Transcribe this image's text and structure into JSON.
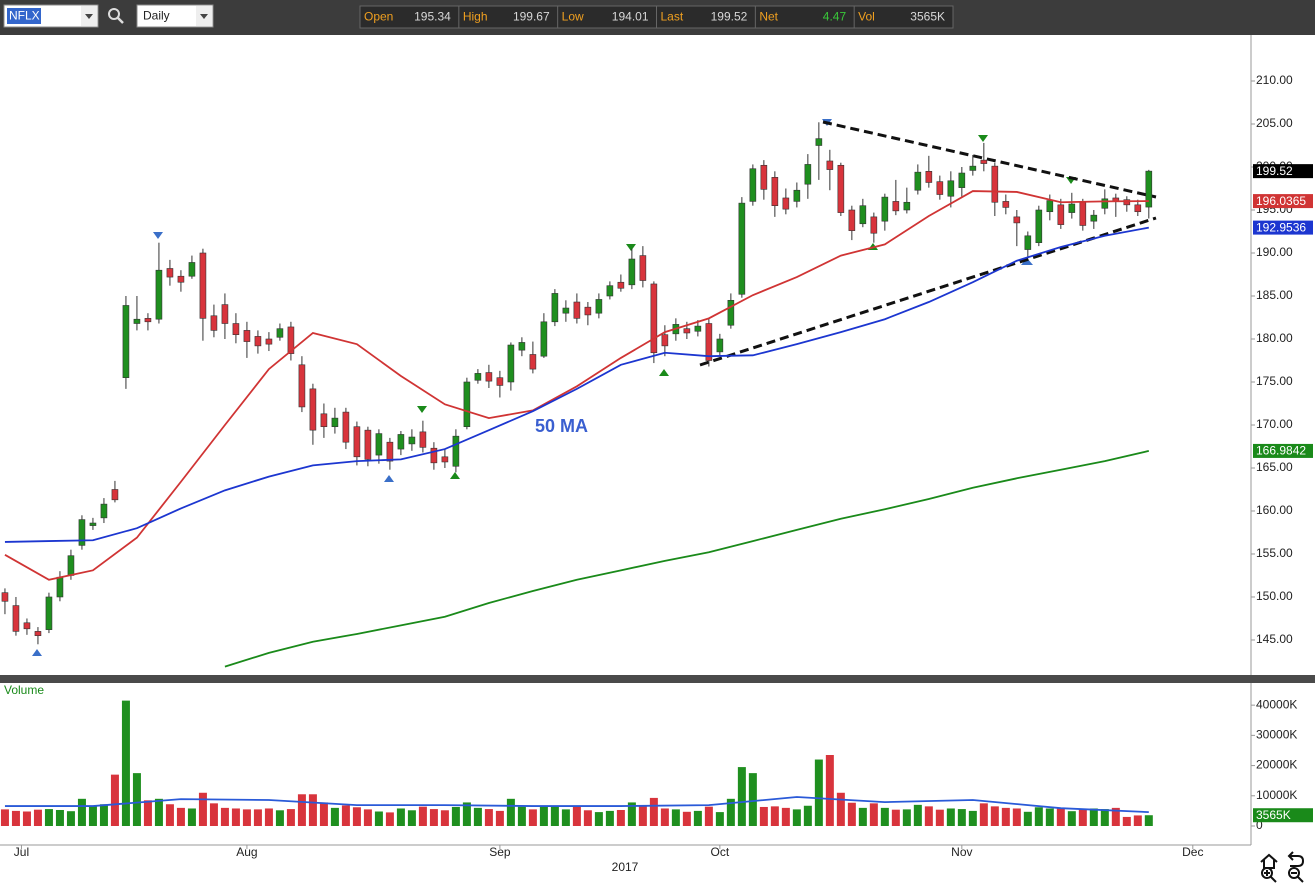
{
  "toolbar": {
    "symbol": "NFLX",
    "interval": "Daily",
    "quote": [
      {
        "label": "Open",
        "value": 195.34
      },
      {
        "label": "High",
        "value": 199.67
      },
      {
        "label": "Low",
        "value": 194.01
      },
      {
        "label": "Last",
        "value": 199.52
      },
      {
        "label": "Net",
        "value": 4.47
      },
      {
        "label": "Vol",
        "value": "3565K"
      }
    ]
  },
  "chart_data": [
    {
      "type": "candlestick",
      "up_color": "#1f8f1f",
      "down_color": "#d8343c",
      "xlim": [
        -0.45,
        113.2
      ],
      "xticks": [
        {
          "value": 1.5,
          "label": "Jul"
        },
        {
          "value": 22,
          "label": "Aug"
        },
        {
          "value": 45,
          "label": "Sep"
        },
        {
          "value": 65,
          "label": "Oct"
        },
        {
          "value": 87,
          "label": "Nov"
        },
        {
          "value": 108,
          "label": "Dec"
        }
      ],
      "xlabel": "2017",
      "ylim": [
        141.16,
        215.35
      ],
      "yticks": [
        {
          "value": 145,
          "label": "145.00"
        },
        {
          "value": 150,
          "label": "150.00"
        },
        {
          "value": 155,
          "label": "155.00"
        },
        {
          "value": 160,
          "label": "160.00"
        },
        {
          "value": 165,
          "label": "165.00"
        },
        {
          "value": 170,
          "label": "170.00"
        },
        {
          "value": 175,
          "label": "175.00"
        },
        {
          "value": 180,
          "label": "180.00"
        },
        {
          "value": 185,
          "label": "185.00"
        },
        {
          "value": 190,
          "label": "190.00"
        },
        {
          "value": 195,
          "label": "195.00"
        },
        {
          "value": 200,
          "label": "200.00"
        },
        {
          "value": 205,
          "label": "205.00"
        },
        {
          "value": 210,
          "label": "210.00"
        }
      ],
      "annotations": [
        {
          "text": "50 MA"
        }
      ],
      "candles": {
        "open": [
          150.5,
          149,
          147,
          146,
          146.2,
          150,
          152.5,
          156,
          158.3,
          159.2,
          162.5,
          175.5,
          181.8,
          182.4,
          182.3,
          188.2,
          187.3,
          187.3,
          190,
          182.7,
          184,
          181.8,
          181,
          180.3,
          180,
          180.2,
          181.4,
          177,
          174.2,
          171.3,
          169.8,
          171.5,
          169.8,
          169.4,
          166.5,
          168,
          167.2,
          167.8,
          169.2,
          167.3,
          166.3,
          165.2,
          169.8,
          175.2,
          176.1,
          175.5,
          175,
          178.7,
          178.2,
          178,
          182,
          183,
          184.3,
          183.7,
          183,
          185,
          186.6,
          186.3,
          189.7,
          186.4,
          180.5,
          180.6,
          181.2,
          180.9,
          181.8,
          178.5,
          181.6,
          185.2,
          196,
          200.2,
          198.8,
          196.4,
          196,
          198,
          202.5,
          200.7,
          200.2,
          195,
          193.4,
          194.2,
          193.7,
          196,
          195,
          197.3,
          199.5,
          198.3,
          196.6,
          197.6,
          199.6,
          200.8,
          200.1,
          196,
          194.2,
          190.4,
          191.2,
          194.8,
          195.6,
          194.7,
          195.9,
          193.7,
          195.2,
          196.4,
          196.2,
          195.6,
          195.34
        ],
        "high": [
          151,
          150,
          147.5,
          146.5,
          150.5,
          153,
          155.5,
          159.5,
          159.2,
          161.5,
          163.5,
          185,
          185,
          183,
          191.2,
          189.2,
          188,
          189.7,
          190.5,
          184,
          185.3,
          183,
          182,
          181,
          180.8,
          181.8,
          182,
          178,
          174.8,
          172.5,
          172,
          172,
          170.4,
          169.8,
          169.5,
          168.5,
          169.3,
          169.5,
          170.5,
          168,
          167.2,
          169.5,
          175.5,
          176.5,
          177,
          176.3,
          179.6,
          180.2,
          179.7,
          183,
          185.8,
          184.5,
          185.3,
          184.3,
          185.3,
          186.7,
          187.5,
          190.5,
          190.8,
          186.7,
          181.6,
          182.4,
          182,
          182.2,
          182.4,
          180.6,
          185.3,
          196.5,
          200.3,
          200.8,
          199.5,
          197.5,
          198.2,
          201.5,
          205.2,
          202,
          200.5,
          195.5,
          196.3,
          194.7,
          196.9,
          198.5,
          197.6,
          200.3,
          201.3,
          199,
          199.5,
          200,
          201.4,
          202.8,
          200.5,
          196.8,
          195,
          192.5,
          195.5,
          196.8,
          196.3,
          197,
          196.3,
          195,
          197.4,
          196.9,
          196.6,
          196.2,
          199.67
        ],
        "low": [
          148,
          145.5,
          145.6,
          144.5,
          145.8,
          149.5,
          152,
          155.5,
          157.8,
          158.6,
          161,
          174.2,
          181,
          181,
          181.8,
          186.2,
          185.5,
          187,
          179.8,
          180.2,
          180,
          179.5,
          177.8,
          178.3,
          178.6,
          179.8,
          177.5,
          171.5,
          167.7,
          168.5,
          169,
          167.2,
          165.3,
          165.2,
          165.5,
          164.8,
          166.5,
          167,
          166.8,
          164.8,
          165,
          164.5,
          169.5,
          174.8,
          174.3,
          173.2,
          174,
          178,
          176,
          177.8,
          181.5,
          182,
          181.8,
          181.6,
          182.4,
          184.6,
          185.5,
          185.8,
          186,
          177.2,
          178,
          179.8,
          180,
          180.3,
          176.8,
          178,
          181.2,
          184.8,
          195.5,
          196.2,
          194.2,
          194.5,
          195.3,
          196.3,
          198.5,
          197.3,
          194.3,
          191.5,
          193,
          191.2,
          192.6,
          194.4,
          194.6,
          196.8,
          197.6,
          196.2,
          195.3,
          196.5,
          199,
          199.5,
          194.3,
          194.5,
          190.8,
          189.5,
          190.8,
          193.8,
          192.8,
          194,
          192.6,
          192.8,
          194.5,
          194.2,
          194.8,
          194.3,
          194.01
        ],
        "close": [
          149.5,
          146,
          146.3,
          145.5,
          150,
          152.3,
          154.8,
          159,
          158.6,
          160.8,
          161.3,
          183.9,
          182.3,
          182,
          188,
          187.2,
          186.6,
          188.9,
          182.4,
          181,
          181.8,
          180.5,
          179.7,
          179.2,
          179.4,
          181.2,
          178.3,
          172.1,
          169.4,
          169.8,
          170.8,
          168,
          166.3,
          166,
          169,
          165.8,
          168.9,
          168.6,
          167.4,
          165.6,
          165.7,
          168.7,
          175,
          176,
          175.1,
          174.6,
          179.3,
          179.6,
          176.5,
          182,
          185.3,
          183.6,
          182.4,
          182.8,
          184.6,
          186.2,
          185.9,
          189.3,
          186.8,
          178.4,
          179.2,
          181.7,
          180.7,
          181.5,
          177.5,
          180,
          184.5,
          195.8,
          199.8,
          197.4,
          195.5,
          195.1,
          197.3,
          200.3,
          203.3,
          199.7,
          194.7,
          192.6,
          195.5,
          192.3,
          196.5,
          194.9,
          195.9,
          199.4,
          198.2,
          196.8,
          198.4,
          199.3,
          200.1,
          200.4,
          195.9,
          195.3,
          193.5,
          192,
          195,
          196.1,
          193.3,
          195.7,
          193.2,
          194.4,
          196.3,
          196,
          195.6,
          194.8,
          199.52
        ]
      },
      "series": [
        {
          "type": "line",
          "color": "#d03434",
          "x": [
            0,
            4,
            8,
            12,
            16,
            20,
            24,
            28,
            32,
            36,
            40,
            44,
            48,
            52,
            56,
            60,
            64,
            68,
            72,
            76,
            80,
            84,
            88,
            92,
            96,
            100,
            104
          ],
          "values": [
            154.9,
            152,
            153.1,
            156.9,
            163.4,
            170,
            176.5,
            180.7,
            179.4,
            175.7,
            172.4,
            170.8,
            171.7,
            174.5,
            177.8,
            180.8,
            182.4,
            185.1,
            187.2,
            189.7,
            191,
            194.3,
            197.2,
            197.1,
            195.9,
            196,
            196.0365
          ]
        },
        {
          "type": "line",
          "color": "#1c36d0",
          "x": [
            0,
            4,
            8,
            12,
            16,
            20,
            24,
            28,
            32,
            36,
            40,
            44,
            48,
            52,
            56,
            60,
            64,
            68,
            72,
            76,
            80,
            84,
            88,
            92,
            96,
            100,
            104
          ],
          "values": [
            156.4,
            156.5,
            156.6,
            158,
            160.3,
            162.4,
            164,
            165.3,
            165.8,
            166,
            167.2,
            169.4,
            171.6,
            174.2,
            177,
            178.4,
            178,
            178.1,
            179.4,
            180.8,
            182.3,
            184.3,
            186.6,
            189.1,
            190.7,
            192,
            192.9536
          ]
        },
        {
          "type": "line",
          "color": "#1a8a1a",
          "x": [
            20,
            24,
            28,
            32,
            36,
            40,
            44,
            48,
            52,
            56,
            60,
            64,
            68,
            72,
            76,
            80,
            84,
            88,
            92,
            96,
            100,
            104
          ],
          "values": [
            141.9,
            143.5,
            144.8,
            145.7,
            146.7,
            147.7,
            149.3,
            150.7,
            152,
            153.1,
            154.2,
            155.2,
            156.5,
            157.8,
            159.1,
            160.2,
            161.4,
            162.7,
            163.8,
            164.8,
            165.8,
            166.9842
          ]
        }
      ]
    },
    {
      "type": "bar",
      "title": "Volume",
      "color": "#1a8a1a",
      "ylim": [
        0,
        47000
      ],
      "yticks": [
        0,
        {
          "value": 10000,
          "label": "10000K"
        },
        {
          "value": 20000,
          "label": "20000K"
        },
        {
          "value": 30000,
          "label": "30000K"
        },
        {
          "value": 40000,
          "label": "40000K"
        }
      ],
      "values": [
        5500,
        5000,
        4800,
        5400,
        5600,
        5300,
        4900,
        9000,
        6500,
        7200,
        17000,
        41500,
        17500,
        8500,
        9000,
        7200,
        6000,
        5800,
        11000,
        7500,
        6000,
        5800,
        5500,
        5500,
        5800,
        5200,
        5600,
        10500,
        10500,
        7800,
        6000,
        6800,
        6200,
        5500,
        4800,
        4500,
        5800,
        5200,
        6400,
        5600,
        5200,
        6300,
        7800,
        6000,
        5600,
        5000,
        9000,
        6400,
        5500,
        6800,
        6500,
        5500,
        6600,
        5200,
        4600,
        5000,
        5300,
        7800,
        6500,
        9300,
        5800,
        5500,
        4700,
        5000,
        6400,
        4600,
        9000,
        19500,
        17500,
        6300,
        6500,
        6000,
        5500,
        6700,
        22000,
        23500,
        11000,
        7700,
        6000,
        7500,
        6000,
        5400,
        5500,
        7000,
        6500,
        5400,
        5800,
        5600,
        5000,
        7500,
        6500,
        6000,
        5800,
        4700,
        6200,
        5800,
        5800,
        4900,
        5600,
        5800,
        5600,
        6000,
        3000,
        3500,
        3565
      ],
      "series": [
        {
          "type": "line",
          "color": "#2a5ad8",
          "x": [
            0,
            8,
            16,
            24,
            32,
            40,
            48,
            56,
            64,
            72,
            80,
            88,
            96,
            104
          ],
          "values": [
            6600,
            6600,
            8900,
            8600,
            6900,
            6900,
            6600,
            6600,
            6900,
            9600,
            7900,
            8600,
            5900,
            4600
          ]
        }
      ]
    }
  ]
}
